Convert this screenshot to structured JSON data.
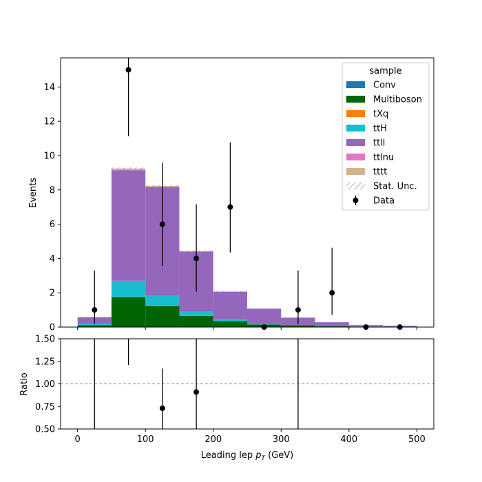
{
  "chart_data": [
    {
      "panel": "main",
      "type": "bar",
      "stacked": true,
      "histogram": true,
      "ylabel": "Events",
      "ylim": [
        0,
        15.7
      ],
      "xlim": [
        -25,
        525
      ],
      "bin_edges": [
        0,
        50,
        100,
        150,
        200,
        250,
        300,
        350,
        400,
        450,
        500
      ],
      "yticks": [
        0,
        2,
        4,
        6,
        8,
        10,
        12,
        14
      ],
      "xticks": [
        0,
        100,
        200,
        300,
        400,
        500
      ],
      "series": [
        {
          "name": "Conv",
          "color": "#1f77b4",
          "values": [
            0,
            0,
            0,
            0,
            0,
            0,
            0,
            0,
            0,
            0
          ]
        },
        {
          "name": "Multiboson",
          "color": "#006400",
          "values": [
            0.1,
            1.75,
            1.25,
            0.65,
            0.35,
            0.15,
            0.1,
            0.05,
            0.02,
            0.02
          ]
        },
        {
          "name": "tXq",
          "color": "#ff7f0e",
          "values": [
            0,
            0.02,
            0.02,
            0.01,
            0.01,
            0,
            0,
            0,
            0,
            0
          ]
        },
        {
          "name": "ttH",
          "color": "#17becf",
          "values": [
            0.12,
            0.93,
            0.58,
            0.24,
            0.09,
            0.02,
            0.02,
            0.01,
            0.01,
            0.01
          ]
        },
        {
          "name": "ttll",
          "color": "#9467bd",
          "values": [
            0.35,
            6.45,
            6.3,
            3.5,
            1.6,
            0.9,
            0.43,
            0.22,
            0.08,
            0.05
          ]
        },
        {
          "name": "ttlnu",
          "color": "#e377c2",
          "values": [
            0,
            0.02,
            0.02,
            0.01,
            0.01,
            0,
            0,
            0,
            0,
            0
          ]
        },
        {
          "name": "tttt",
          "color": "#d2b48c",
          "values": [
            0.02,
            0.08,
            0.06,
            0.03,
            0.02,
            0.01,
            0,
            0,
            0,
            0
          ]
        }
      ],
      "stat_unc": [
        0.02,
        0.06,
        0.06,
        0.04,
        0.03,
        0.02,
        0.02,
        0.01,
        0.01,
        0.01
      ],
      "data": {
        "name": "Data",
        "x": [
          25,
          75,
          125,
          175,
          225,
          275,
          325,
          375,
          425,
          475
        ],
        "y": [
          1,
          15,
          6,
          4,
          7,
          0,
          1,
          2,
          0,
          0
        ],
        "yerr_low": [
          0.83,
          3.87,
          2.45,
          1.94,
          2.65,
          0,
          0.83,
          1.29,
          0,
          0
        ],
        "yerr_high": [
          2.3,
          4.97,
          3.58,
          3.16,
          3.77,
          0,
          2.3,
          2.63,
          0,
          0
        ]
      },
      "legend": {
        "title": "sample",
        "placement": "top-right",
        "entries": [
          "Conv",
          "Multiboson",
          "tXq",
          "ttH",
          "ttll",
          "ttlnu",
          "tttt",
          "Stat. Unc.",
          "Data"
        ]
      }
    },
    {
      "panel": "ratio",
      "type": "scatter",
      "xlabel_prefix": "Leading lep ",
      "xlabel_math": "p",
      "xlabel_sub": "T",
      "xlabel_suffix": " (GeV)",
      "ylabel": "Ratio",
      "ylim": [
        0.5,
        1.5
      ],
      "xlim": [
        -25,
        525
      ],
      "yticks": [
        "0.50",
        "0.75",
        "1.00",
        "1.25",
        "1.50"
      ],
      "xticks": [
        "0",
        "100",
        "200",
        "300",
        "400",
        "500"
      ],
      "reference_line": 1.0,
      "points": [
        {
          "x": 25,
          "y": null,
          "err_low": 1.0,
          "err_high": 3.0
        },
        {
          "x": 75,
          "y": 1.63,
          "err_low": 0.42,
          "err_high": 0.55
        },
        {
          "x": 125,
          "y": 0.73,
          "err_low": 0.3,
          "err_high": 0.44
        },
        {
          "x": 175,
          "y": 0.91,
          "err_low": 0.44,
          "err_high": 0.72
        },
        {
          "x": 325,
          "y": null,
          "err_low": 1.0,
          "err_high": 3.0
        }
      ]
    }
  ]
}
